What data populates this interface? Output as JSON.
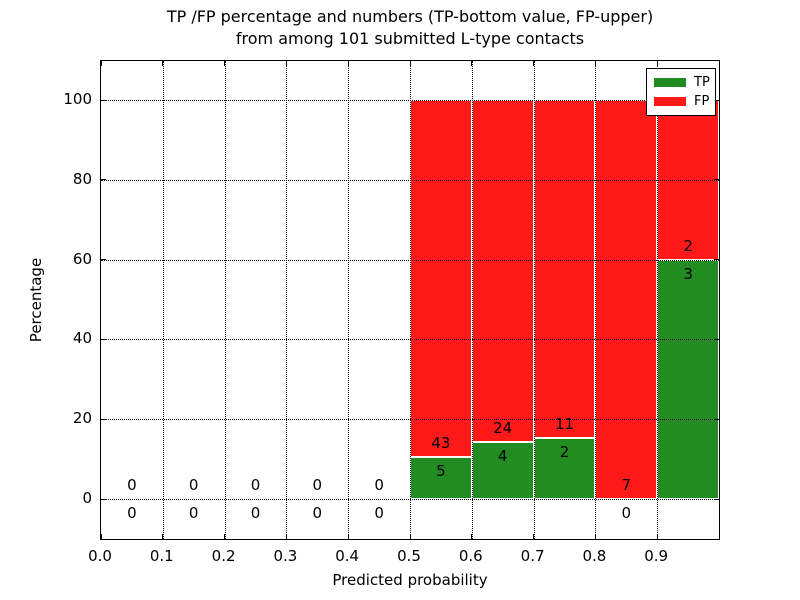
{
  "title": {
    "line1": "TP /FP percentage and numbers (TP-bottom value, FP-upper)",
    "line2": "from among 101 submitted L-type contacts"
  },
  "x_axis": {
    "label": "Predicted probability",
    "tick_labels": [
      "0.0",
      "0.1",
      "0.2",
      "0.3",
      "0.4",
      "0.5",
      "0.6",
      "0.7",
      "0.8",
      "0.9"
    ]
  },
  "y_axis": {
    "label": "Percentage",
    "tick_labels": [
      "0",
      "20",
      "40",
      "60",
      "80",
      "100"
    ]
  },
  "legend": {
    "items": [
      {
        "label": "TP",
        "color": "#228b22"
      },
      {
        "label": "FP",
        "color": "#ff1a1a"
      }
    ]
  },
  "chart_data": {
    "type": "bar",
    "stacked": true,
    "title": "TP /FP percentage and numbers (TP-bottom value, FP-upper) from among 101 submitted L-type contacts",
    "xlabel": "Predicted probability",
    "ylabel": "Percentage",
    "bin_edges": [
      0.0,
      0.1,
      0.2,
      0.3,
      0.4,
      0.5,
      0.6,
      0.7,
      0.8,
      0.9,
      1.0
    ],
    "x_tick_values": [
      0.0,
      0.1,
      0.2,
      0.3,
      0.4,
      0.5,
      0.6,
      0.7,
      0.8,
      0.9
    ],
    "y_tick_values": [
      0,
      20,
      40,
      60,
      80,
      100
    ],
    "xlim": [
      0.0,
      1.0
    ],
    "ylim": [
      -10.3,
      110.0
    ],
    "grid": "dotted",
    "legend_position": "upper right",
    "series": [
      {
        "name": "TP",
        "color": "#228b22",
        "counts": [
          0,
          0,
          0,
          0,
          0,
          5,
          4,
          2,
          0,
          3
        ],
        "percent": [
          0,
          0,
          0,
          0,
          0,
          10.42,
          14.29,
          15.38,
          0,
          60
        ]
      },
      {
        "name": "FP",
        "color": "#ff1a1a",
        "counts": [
          0,
          0,
          0,
          0,
          0,
          43,
          24,
          11,
          7,
          2
        ],
        "percent": [
          0,
          0,
          0,
          0,
          0,
          89.58,
          85.71,
          84.62,
          100,
          40
        ]
      }
    ]
  }
}
